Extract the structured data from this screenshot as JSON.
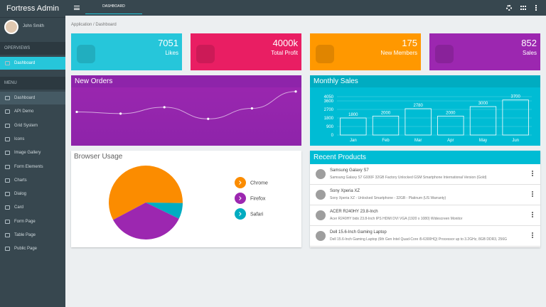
{
  "sidebar": {
    "brand": "Fortress Admin",
    "user": "John Smith",
    "sections": [
      {
        "title": "OPERVIEWS",
        "items": [
          "Dashboard"
        ]
      },
      {
        "title": "MENU",
        "items": [
          "Dashboard",
          "API Demo",
          "Grid System",
          "Icons",
          "Image Gallery",
          "Form Elements",
          "Charts",
          "Dialog",
          "Card",
          "Form Page",
          "Table Page",
          "Public Page"
        ]
      }
    ]
  },
  "topbar": {
    "tab": "DASHBOARD"
  },
  "breadcrumb": "Application / Dashboard",
  "stats": [
    {
      "value": "7051",
      "label": "Likes",
      "color": "#26c6da"
    },
    {
      "value": "4000k",
      "label": "Total Profit",
      "color": "#e91e63"
    },
    {
      "value": "175",
      "label": "New Members",
      "color": "#ff9800"
    },
    {
      "value": "852",
      "label": "Sales",
      "color": "#9c27b0"
    }
  ],
  "chart_data": [
    {
      "type": "line",
      "title": "New Orders",
      "values": [
        58,
        55,
        66,
        46,
        64,
        93
      ],
      "ylim": [
        0,
        100
      ],
      "color": "#ffffff"
    },
    {
      "type": "bar",
      "title": "Monthly Sales",
      "categories": [
        "Jan",
        "Feb",
        "Mar",
        "Apr",
        "May",
        "Jun"
      ],
      "values": [
        1800,
        2000,
        2780,
        2000,
        3000,
        3700
      ],
      "ylim": [
        0,
        4050
      ],
      "yticks": [
        0,
        900,
        1800,
        2700,
        3600,
        4050
      ],
      "grid": true,
      "color": "#ffffff"
    },
    {
      "type": "pie",
      "title": "Browser Usage",
      "categories": [
        "Chrome",
        "Firefox",
        "Safari"
      ],
      "values": [
        58,
        35,
        7
      ],
      "colors": [
        "#fb8c00",
        "#9c27b0",
        "#00acc1"
      ]
    }
  ],
  "recent_products": {
    "title": "Recent Products",
    "items": [
      {
        "name": "Samsung Galaxy S7",
        "description": "Samsung Galaxy S7 G930F 32GB Factory Unlocked GSM Smartphone International Version (Gold)"
      },
      {
        "name": "Sony Xperia XZ",
        "description": "Sony Xperia XZ - Unlocked Smartphone - 32GB - Platinum (US Warranty)"
      },
      {
        "name": "ACER R240HY 23.8-Inch",
        "description": "Acer R240HY bidx 23.8-Inch IPS HDMI DVI VGA (1920 x 1080) Widescreen Monitor"
      },
      {
        "name": "Dell 15.6-Inch Gaming Laptop",
        "description": "Dell 15.6-Inch Gaming Laptop (6th Gen Intel Quad-Core i5-6300HQ) Processor up to 3.2GHz, 8GB DDR3, 256G"
      }
    ]
  }
}
